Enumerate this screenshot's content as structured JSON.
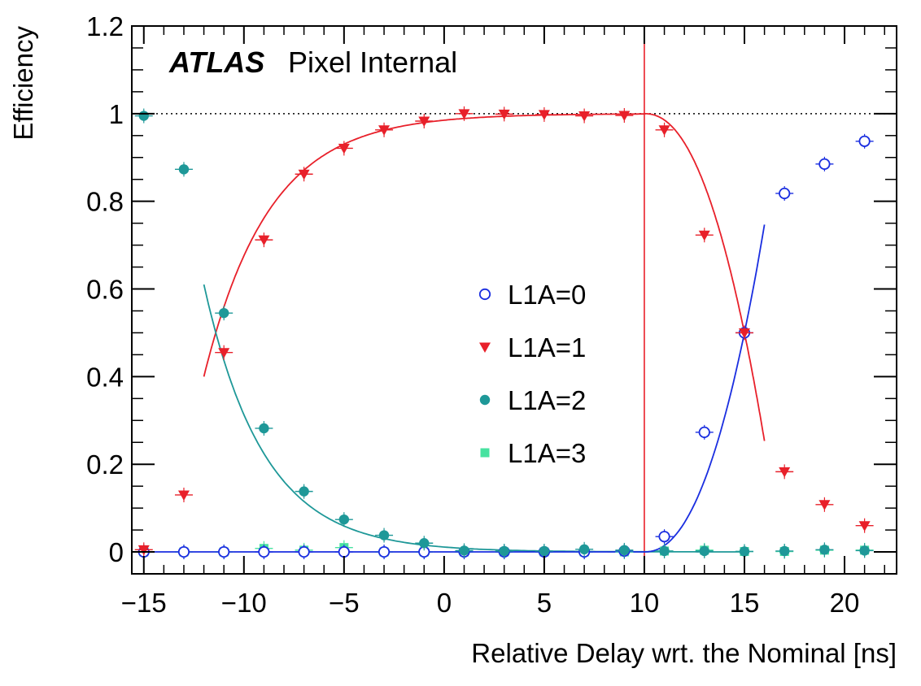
{
  "experiment_label": "ATLAS",
  "status_label": "Pixel Internal",
  "chart_data": {
    "type": "scatter",
    "xlabel": "Relative Delay wrt. the Nominal [ns]",
    "ylabel": "Efficiency",
    "xlim": [
      -15.6,
      22.6
    ],
    "ylim": [
      -0.05,
      1.2
    ],
    "xticks": [
      -15,
      -10,
      -5,
      0,
      5,
      10,
      15,
      20
    ],
    "xtick_labels": [
      "−15",
      "−10",
      "−5",
      "0",
      "5",
      "10",
      "15",
      "20"
    ],
    "yticks": [
      0,
      0.2,
      0.4,
      0.6,
      0.8,
      1,
      1.2
    ],
    "ytick_labels": [
      "0",
      "0.2",
      "0.4",
      "0.6",
      "0.8",
      "1",
      "1.2"
    ],
    "reference_line_y": 1,
    "vertical_line_x": 10,
    "vertical_line_color": "#e8202a",
    "legend_position": "center-right",
    "series": [
      {
        "name": "L1A=0",
        "marker": "open-circle",
        "color": "#1a2ee0",
        "x": [
          -15,
          -13,
          -11,
          -9,
          -7,
          -5,
          -3,
          -1,
          1,
          3,
          5,
          7,
          9,
          11,
          13,
          15,
          17,
          19,
          21
        ],
        "y": [
          0.0,
          0.0,
          0.0,
          0.0,
          0.0,
          0.0,
          0.0,
          0.0,
          0.0,
          0.0,
          0.0,
          0.0,
          0.002,
          0.035,
          0.273,
          0.5,
          0.818,
          0.885,
          0.937
        ],
        "fit_color": "#1a2ee0"
      },
      {
        "name": "L1A=1",
        "marker": "filled-triangle-down",
        "color": "#e8202a",
        "x": [
          -15,
          -13,
          -11,
          -9,
          -7,
          -5,
          -3,
          -1,
          1,
          3,
          5,
          7,
          9,
          11,
          13,
          15,
          17,
          19,
          21
        ],
        "y": [
          0.005,
          0.13,
          0.455,
          0.712,
          0.862,
          0.921,
          0.963,
          0.983,
          1.0,
          0.999,
          0.998,
          0.995,
          0.996,
          0.963,
          0.723,
          0.5,
          0.183,
          0.108,
          0.06
        ],
        "fit_color": "#e8202a"
      },
      {
        "name": "L1A=2",
        "marker": "filled-circle",
        "color": "#1e9898",
        "x": [
          -15,
          -13,
          -11,
          -9,
          -7,
          -5,
          -3,
          -1,
          1,
          3,
          5,
          7,
          9,
          11,
          13,
          15,
          17,
          19,
          21
        ],
        "y": [
          0.995,
          0.873,
          0.545,
          0.282,
          0.138,
          0.074,
          0.038,
          0.02,
          0.003,
          0.002,
          0.002,
          0.006,
          0.004,
          0.002,
          0.002,
          0.001,
          0.002,
          0.005,
          0.003
        ],
        "fit_color": "#1e9898"
      },
      {
        "name": "L1A=3",
        "marker": "filled-square",
        "color": "#47e2a0",
        "x": [
          -15,
          -13,
          -11,
          -9,
          -7,
          -5,
          -3,
          -1,
          1,
          3,
          5,
          7,
          9,
          11,
          13,
          15,
          17,
          19,
          21
        ],
        "y": [
          0.0,
          0.0,
          0.0,
          0.008,
          0.004,
          0.01,
          0.0,
          0.0,
          0.0,
          0.0,
          0.0,
          0.0,
          0.0,
          0.002,
          0.004,
          0.001,
          0.001,
          0.004,
          0.004
        ]
      }
    ]
  }
}
